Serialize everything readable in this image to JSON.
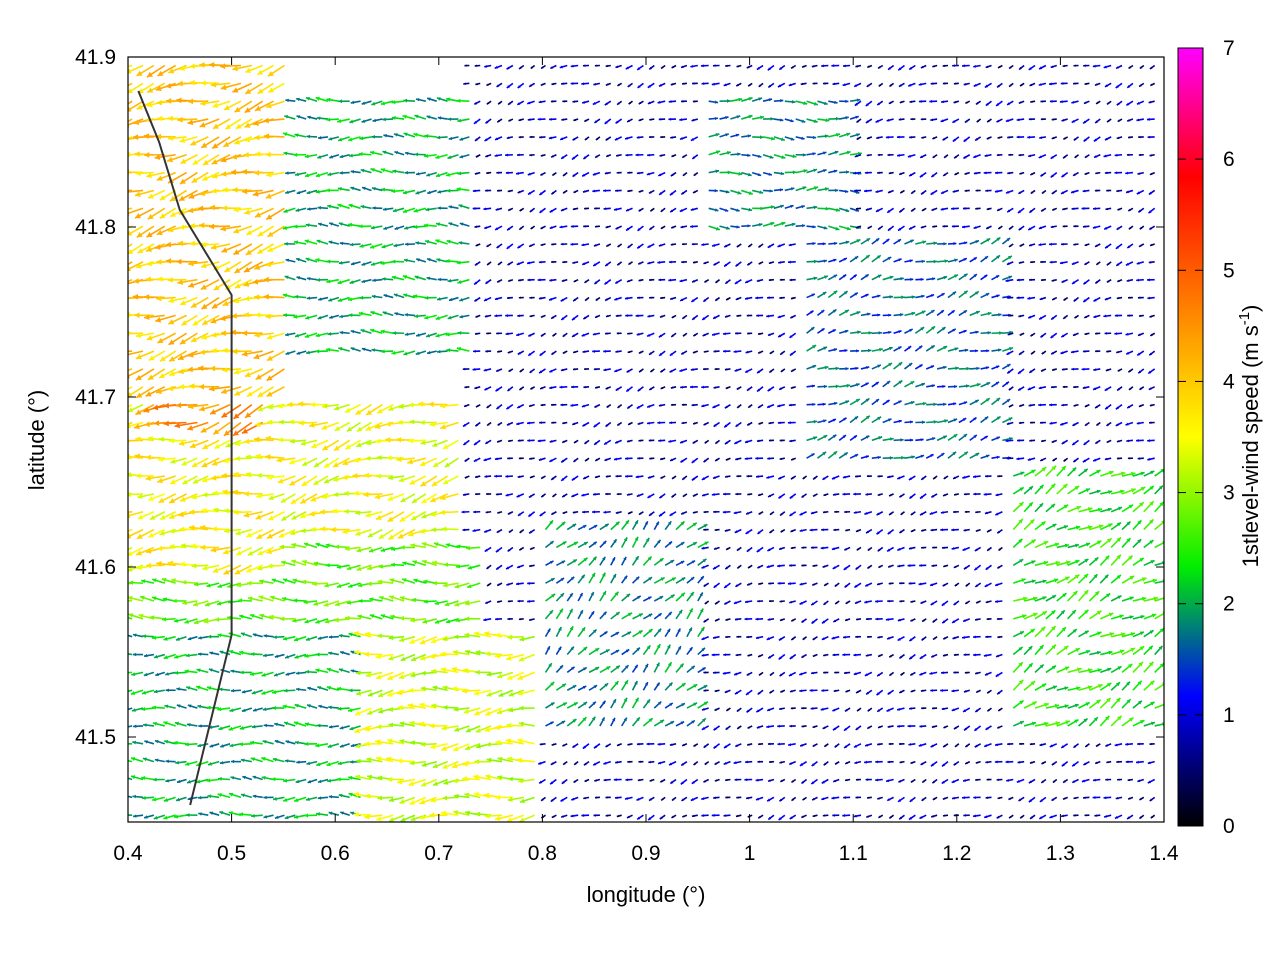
{
  "chart_data": {
    "type": "vector-field",
    "title": "",
    "xlabel": "longitude (°)",
    "ylabel": "latitude (°)",
    "xlim": [
      0.4,
      1.4
    ],
    "ylim": [
      41.45,
      41.9
    ],
    "xticks": [
      "0.4",
      "0.5",
      "0.6",
      "0.7",
      "0.8",
      "0.9",
      "1",
      "1.1",
      "1.2",
      "1.3",
      "1.4"
    ],
    "yticks": [
      "41.5",
      "41.6",
      "41.7",
      "41.8",
      "41.9"
    ],
    "grid": false,
    "legend": "none",
    "colorbar": {
      "label_main": "1stlevel-wind speed (m s",
      "label_sup": "-1",
      "label_close": ")",
      "range": [
        0,
        7
      ],
      "ticks": [
        "0",
        "1",
        "2",
        "3",
        "4",
        "5",
        "6",
        "7"
      ],
      "colors": [
        "#000000",
        "#0000ff",
        "#00ee00",
        "#ffff00",
        "#ff8000",
        "#ff0000",
        "#ff00ff"
      ]
    },
    "wind_regions": [
      {
        "lon": [
          0.4,
          0.56
        ],
        "lat": [
          41.7,
          41.9
        ],
        "speed": 4.0,
        "dir_deg": 195
      },
      {
        "lon": [
          0.42,
          0.53
        ],
        "lat": [
          41.68,
          41.78
        ],
        "speed": 4.5,
        "dir_deg": 200
      },
      {
        "lon": [
          0.4,
          0.56
        ],
        "lat": [
          41.6,
          41.7
        ],
        "speed": 3.6,
        "dir_deg": 190
      },
      {
        "lon": [
          0.56,
          0.72
        ],
        "lat": [
          41.62,
          41.7
        ],
        "speed": 3.5,
        "dir_deg": 195
      },
      {
        "lon": [
          0.4,
          0.75
        ],
        "lat": [
          41.56,
          41.62
        ],
        "speed": 2.7,
        "dir_deg": 180
      },
      {
        "lon": [
          0.4,
          0.63
        ],
        "lat": [
          41.45,
          41.56
        ],
        "speed": 2.0,
        "dir_deg": 180
      },
      {
        "lon": [
          0.63,
          0.8
        ],
        "lat": [
          41.45,
          41.56
        ],
        "speed": 3.3,
        "dir_deg": 185
      },
      {
        "lon": [
          0.56,
          0.73
        ],
        "lat": [
          41.72,
          41.88
        ],
        "speed": 2.0,
        "dir_deg": 180
      },
      {
        "lon": [
          0.8,
          0.95
        ],
        "lat": [
          41.5,
          41.63
        ],
        "speed": 1.8,
        "dir_deg": 45
      },
      {
        "lon": [
          0.95,
          1.1
        ],
        "lat": [
          41.8,
          41.88
        ],
        "speed": 1.8,
        "dir_deg": 0
      },
      {
        "lon": [
          1.05,
          1.25
        ],
        "lat": [
          41.66,
          41.8
        ],
        "speed": 1.6,
        "dir_deg": 20
      },
      {
        "lon": [
          1.25,
          1.4
        ],
        "lat": [
          41.5,
          41.66
        ],
        "speed": 2.4,
        "dir_deg": 30
      },
      {
        "lon": [
          0.72,
          1.4
        ],
        "lat": [
          41.45,
          41.9
        ],
        "speed": 0.8,
        "dir_deg": 200
      }
    ],
    "terrain_contours": [
      {
        "name": "contour-west",
        "lon": [
          0.46,
          0.48,
          0.5,
          0.5,
          0.5,
          0.5,
          0.5,
          0.45,
          0.43,
          0.41
        ],
        "lat": [
          41.46,
          41.51,
          41.56,
          41.61,
          41.66,
          41.71,
          41.76,
          41.81,
          41.85,
          41.88
        ]
      }
    ]
  }
}
